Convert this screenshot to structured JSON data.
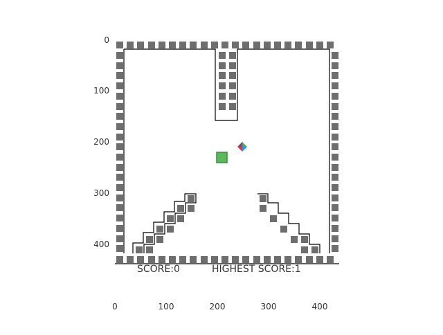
{
  "hud": {
    "score_label": "SCORE:0",
    "highest_label": "HIGHEST SCORE:1"
  },
  "axes": {
    "y_ticks": [
      0,
      100,
      200,
      300,
      400
    ],
    "x_ticks": [
      0,
      100,
      200,
      300,
      400
    ]
  },
  "game": {
    "wall_color": "#6e6e6e",
    "player_color": "#5cb85c",
    "ball_colors": [
      "#4caf50",
      "#2196f3",
      "#e53935",
      "#7b3fa0"
    ]
  }
}
